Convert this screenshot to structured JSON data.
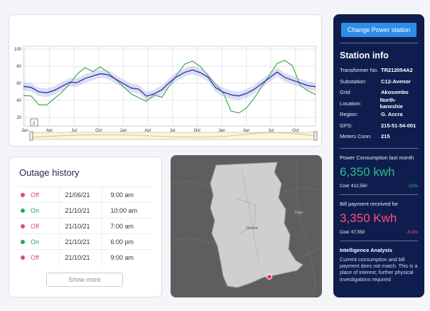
{
  "chart_data": {
    "type": "line",
    "title": "",
    "xlabel": "",
    "ylabel": "",
    "ylim": [
      10,
      100
    ],
    "yticks": [
      20,
      40,
      60,
      80,
      100
    ],
    "xticks": [
      "Jan",
      "Apr",
      "Jul",
      "Oct",
      "Jan",
      "Apr",
      "Jul",
      "Oct",
      "Jan",
      "Apr",
      "Jul",
      "Oct"
    ],
    "grid": true,
    "range_badge": "2",
    "series": [
      {
        "color": "#2fa33a",
        "values": [
          52,
          50,
          38,
          36,
          42,
          48,
          56,
          66,
          72,
          80,
          84,
          76,
          66,
          56,
          46,
          40,
          34,
          40,
          50,
          62,
          74,
          84,
          86,
          78,
          66,
          54,
          42,
          34,
          30,
          34,
          44,
          56,
          68,
          80,
          82,
          74,
          64,
          56,
          50
        ]
      },
      {
        "color": "#2a2fa8",
        "values": [
          58,
          56,
          50,
          48,
          50,
          54,
          58,
          64,
          68,
          70,
          72,
          70,
          64,
          58,
          52,
          50,
          48,
          50,
          54,
          62,
          68,
          72,
          74,
          70,
          64,
          58,
          52,
          48,
          46,
          48,
          52,
          58,
          64,
          70,
          70,
          66,
          62,
          58,
          56
        ]
      }
    ]
  },
  "outage": {
    "title": "Outage history",
    "rows": [
      {
        "status": "Off",
        "date": "21/06/21",
        "time": "9:00 am"
      },
      {
        "status": "On",
        "date": "21/10/21",
        "time": "10:00 am"
      },
      {
        "status": "Off",
        "date": "21/10/21",
        "time": "7:00 am"
      },
      {
        "status": "On",
        "date": "21/10/21",
        "time": "6:00 pm"
      },
      {
        "status": "Off",
        "date": "21/10/21",
        "time": "9:00 am"
      }
    ],
    "show_more": "Show more"
  },
  "map": {
    "labels": {
      "country": "Ghana",
      "togo": "Togo"
    }
  },
  "station": {
    "change_button": "Change Power station",
    "title": "Station info",
    "fields": [
      {
        "k": "Transformer No.",
        "v": "TR212054A2"
      },
      {
        "k": "Substation:",
        "v": "C12-Avenor"
      },
      {
        "k": "Grid:",
        "v": "Akosombo"
      },
      {
        "k": "Location:",
        "v": "North-kaneshie"
      },
      {
        "k": "Region:",
        "v": "G. Accra"
      },
      {
        "k": "GPS:",
        "v": "215-51-54-001"
      },
      {
        "k": "Meters Conn.",
        "v": "215"
      }
    ],
    "consumption": {
      "label": "Power Consumption last month",
      "value": "6,350 kwh",
      "cost": "Cost: ¢12,550",
      "change": "↑12%"
    },
    "bill": {
      "label": "Bill payment received for",
      "value": "3,350 Kwh",
      "cost": "Cost: ¢7,550",
      "change": "↓8.5%"
    },
    "intelligence": {
      "title": "Intelligence Analysis",
      "text": "Current consumption and bill payment does not match. This is a place of interest; further physical investigations required"
    }
  },
  "colors": {
    "panel_bg": "#0f1d4e",
    "accent_blue": "#2e8de6",
    "status_off": "#e04a6e",
    "status_on": "#22aa55"
  }
}
